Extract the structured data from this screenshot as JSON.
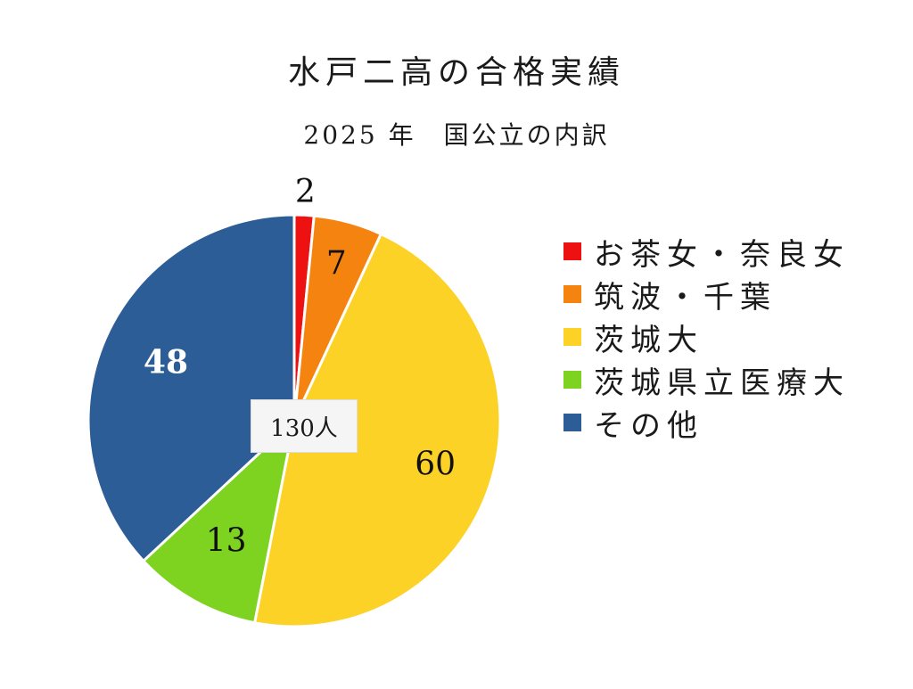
{
  "chart_data": {
    "type": "pie",
    "title": "水戸二高の合格実績",
    "subtitle": "2025 年　国公立の内訳",
    "center_label": "130人",
    "slices": [
      {
        "name": "お茶女・奈良女",
        "value": 2,
        "color": "#ee1111",
        "label_color": "#111111"
      },
      {
        "name": "筑波・千葉",
        "value": 7,
        "color": "#f58310",
        "label_color": "#111111"
      },
      {
        "name": "茨城大",
        "value": 60,
        "color": "#fcd227",
        "label_color": "#111111"
      },
      {
        "name": "茨城県立医療大",
        "value": 13,
        "color": "#7ed321",
        "label_color": "#111111"
      },
      {
        "name": "その他",
        "value": 48,
        "color": "#2d5d96",
        "label_color": "#ffffff"
      }
    ],
    "legend_position": "right"
  }
}
